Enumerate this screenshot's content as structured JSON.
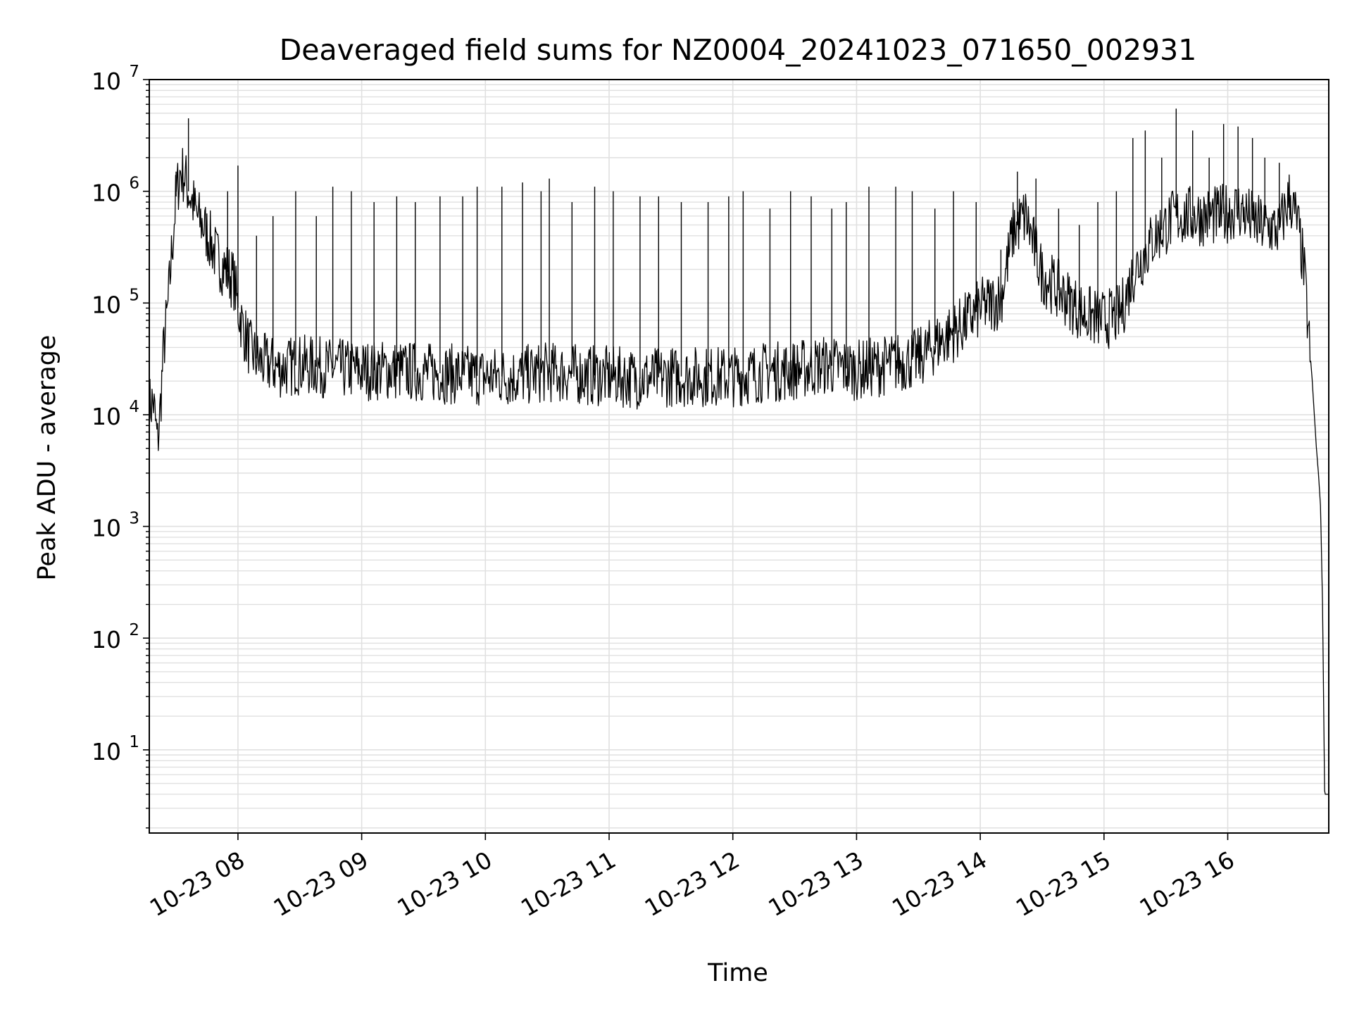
{
  "chart_data": {
    "type": "line",
    "title": "Deaveraged field sums for NZ0004_20241023_071650_002931",
    "xlabel": "Time",
    "ylabel": "Peak ADU - average",
    "yscale": "log",
    "xlim": [
      "2024-10-23 07:17",
      "2024-10-23 16:49"
    ],
    "ylim": [
      1.8,
      10000000
    ],
    "grid": true,
    "legend": "none",
    "line_color": "#000000",
    "grid_color": "#e0e0e0",
    "x_ticks": [
      "10-23 08",
      "10-23 09",
      "10-23 10",
      "10-23 11",
      "10-23 12",
      "10-23 13",
      "10-23 14",
      "10-23 15",
      "10-23 16"
    ],
    "x_tick_times": [
      "2024-10-23 08:00",
      "2024-10-23 09:00",
      "2024-10-23 10:00",
      "2024-10-23 11:00",
      "2024-10-23 12:00",
      "2024-10-23 13:00",
      "2024-10-23 14:00",
      "2024-10-23 15:00",
      "2024-10-23 16:00"
    ],
    "y_ticks": [
      {
        "value": 10,
        "base": "10",
        "exp": "1"
      },
      {
        "value": 100,
        "base": "10",
        "exp": "2"
      },
      {
        "value": 1000,
        "base": "10",
        "exp": "3"
      },
      {
        "value": 10000,
        "base": "10",
        "exp": "4"
      },
      {
        "value": 100000,
        "base": "10",
        "exp": "5"
      },
      {
        "value": 1000000,
        "base": "10",
        "exp": "6"
      },
      {
        "value": 10000000,
        "base": "10",
        "exp": "7"
      }
    ],
    "series": [
      {
        "x": [
          "2024-10-23 07:17",
          "2024-10-23 07:19",
          "2024-10-23 07:21",
          "2024-10-23 07:22",
          "2024-10-23 07:24",
          "2024-10-23 07:26",
          "2024-10-23 07:28",
          "2024-10-23 07:30",
          "2024-10-23 07:32",
          "2024-10-23 07:34",
          "2024-10-23 07:36",
          "2024-10-23 07:38",
          "2024-10-23 07:40",
          "2024-10-23 07:43",
          "2024-10-23 07:46",
          "2024-10-23 07:50",
          "2024-10-23 07:54",
          "2024-10-23 07:58",
          "2024-10-23 08:00",
          "2024-10-23 08:03",
          "2024-10-23 08:06",
          "2024-10-23 08:10",
          "2024-10-23 08:15",
          "2024-10-23 08:20",
          "2024-10-23 08:30",
          "2024-10-23 08:45",
          "2024-10-23 09:00",
          "2024-10-23 09:15",
          "2024-10-23 09:30",
          "2024-10-23 09:45",
          "2024-10-23 10:00",
          "2024-10-23 10:15",
          "2024-10-23 10:30",
          "2024-10-23 10:45",
          "2024-10-23 11:00",
          "2024-10-23 11:15",
          "2024-10-23 11:30",
          "2024-10-23 11:45",
          "2024-10-23 12:00",
          "2024-10-23 12:15",
          "2024-10-23 12:30",
          "2024-10-23 12:45",
          "2024-10-23 13:00",
          "2024-10-23 13:15",
          "2024-10-23 13:30",
          "2024-10-23 13:40",
          "2024-10-23 13:50",
          "2024-10-23 14:00",
          "2024-10-23 14:10",
          "2024-10-23 14:16",
          "2024-10-23 14:22",
          "2024-10-23 14:30",
          "2024-10-23 14:40",
          "2024-10-23 14:50",
          "2024-10-23 15:00",
          "2024-10-23 15:08",
          "2024-10-23 15:15",
          "2024-10-23 15:25",
          "2024-10-23 15:35",
          "2024-10-23 15:45",
          "2024-10-23 15:55",
          "2024-10-23 16:05",
          "2024-10-23 16:15",
          "2024-10-23 16:25",
          "2024-10-23 16:30",
          "2024-10-23 16:34",
          "2024-10-23 16:37",
          "2024-10-23 16:39",
          "2024-10-23 16:41",
          "2024-10-23 16:42",
          "2024-10-23 16:43",
          "2024-10-23 16:44",
          "2024-10-23 16:45",
          "2024-10-23 16:46",
          "2024-10-23 16:47",
          "2024-10-23 16:48",
          "2024-10-23 16:49"
        ],
        "y": [
          12000,
          13000,
          5500,
          9000,
          40000,
          90000,
          300000,
          900000,
          1500000,
          1400000,
          1000000,
          800000,
          600000,
          500000,
          380000,
          250000,
          200000,
          160000,
          90000,
          55000,
          38000,
          30000,
          28000,
          26000,
          28000,
          26000,
          25000,
          25000,
          24000,
          23000,
          22000,
          22000,
          24000,
          23000,
          22000,
          21000,
          22000,
          22000,
          22000,
          24000,
          25000,
          28000,
          25000,
          28000,
          32000,
          45000,
          60000,
          90000,
          110000,
          450000,
          600000,
          180000,
          120000,
          80000,
          70000,
          80000,
          200000,
          400000,
          600000,
          600000,
          600000,
          700000,
          500000,
          450000,
          900000,
          500000,
          200000,
          60000,
          20000,
          10000,
          5000,
          3000,
          1500,
          200,
          4,
          4,
          4
        ]
      }
    ],
    "spike_series": {
      "x": [
        "2024-10-23 07:30",
        "2024-10-23 07:36",
        "2024-10-23 07:55",
        "2024-10-23 08:00",
        "2024-10-23 08:09",
        "2024-10-23 08:17",
        "2024-10-23 08:28",
        "2024-10-23 08:38",
        "2024-10-23 08:46",
        "2024-10-23 08:55",
        "2024-10-23 09:06",
        "2024-10-23 09:17",
        "2024-10-23 09:26",
        "2024-10-23 09:38",
        "2024-10-23 09:49",
        "2024-10-23 09:56",
        "2024-10-23 10:08",
        "2024-10-23 10:18",
        "2024-10-23 10:27",
        "2024-10-23 10:31",
        "2024-10-23 10:42",
        "2024-10-23 10:53",
        "2024-10-23 11:02",
        "2024-10-23 11:15",
        "2024-10-23 11:24",
        "2024-10-23 11:35",
        "2024-10-23 11:48",
        "2024-10-23 11:58",
        "2024-10-23 12:05",
        "2024-10-23 12:18",
        "2024-10-23 12:28",
        "2024-10-23 12:38",
        "2024-10-23 12:48",
        "2024-10-23 12:55",
        "2024-10-23 13:06",
        "2024-10-23 13:19",
        "2024-10-23 13:27",
        "2024-10-23 13:38",
        "2024-10-23 13:47",
        "2024-10-23 13:58",
        "2024-10-23 14:10",
        "2024-10-23 14:18",
        "2024-10-23 14:27",
        "2024-10-23 14:38",
        "2024-10-23 14:48",
        "2024-10-23 14:57",
        "2024-10-23 15:06",
        "2024-10-23 15:14",
        "2024-10-23 15:20",
        "2024-10-23 15:28",
        "2024-10-23 15:35",
        "2024-10-23 15:43",
        "2024-10-23 15:51",
        "2024-10-23 15:58",
        "2024-10-23 16:05",
        "2024-10-23 16:12",
        "2024-10-23 16:18",
        "2024-10-23 16:25"
      ],
      "y": [
        1500000,
        4500000,
        1000000,
        1700000,
        400000,
        600000,
        1000000,
        600000,
        1100000,
        1000000,
        800000,
        900000,
        800000,
        900000,
        900000,
        1100000,
        1100000,
        1200000,
        1000000,
        1300000,
        800000,
        1100000,
        1000000,
        900000,
        900000,
        800000,
        800000,
        900000,
        1000000,
        700000,
        1000000,
        900000,
        700000,
        800000,
        1100000,
        1100000,
        1000000,
        700000,
        1000000,
        800000,
        300000,
        1500000,
        1300000,
        700000,
        500000,
        800000,
        1000000,
        3000000,
        3500000,
        2000000,
        5500000,
        3500000,
        2000000,
        4000000,
        3800000,
        3000000,
        2000000,
        1800000
      ]
    }
  }
}
